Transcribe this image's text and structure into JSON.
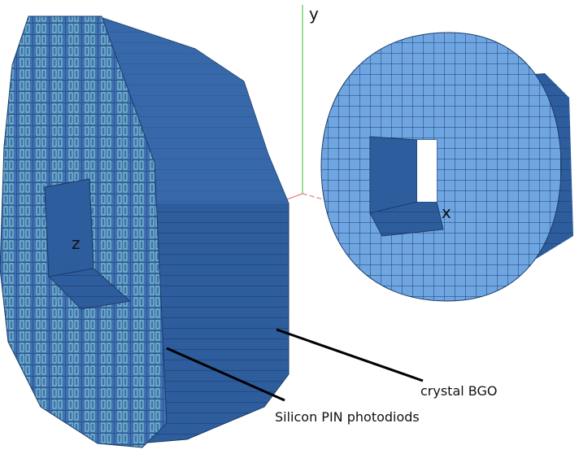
{
  "axes": {
    "x": "x",
    "y": "y",
    "z": "z"
  },
  "callouts": {
    "crystal": "crystal BGO",
    "photodiode": "Silicon PIN photodiods"
  },
  "colors": {
    "crystal_face": "#6fa6e2",
    "crystal_side": "#2e5d9e",
    "crystal_top": "#3f71b3",
    "grid_line": "#1b3c6a",
    "photodiode": "#8fd6c8",
    "axis_x": "#e08585",
    "axis_y": "#55cc55"
  },
  "icons": {
    "detector_left": "crystal-ring-with-photodiodes",
    "detector_right": "crystal-ring-front"
  }
}
